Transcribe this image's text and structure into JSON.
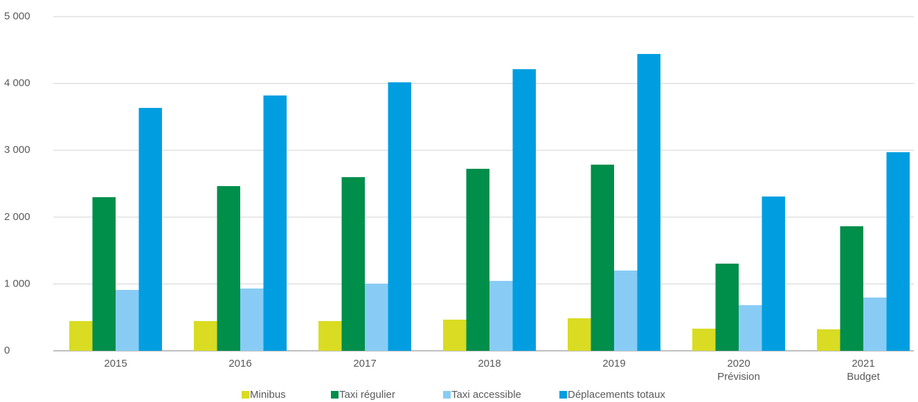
{
  "chart_data": {
    "type": "bar",
    "categories": [
      "2015",
      "2016",
      "2017",
      "2018",
      "2019",
      "2020\nPrévision",
      "2021\nBudget"
    ],
    "series": [
      {
        "name": "Minibus",
        "color": "#d9dc22",
        "values": [
          445,
          445,
          445,
          466,
          487,
          331,
          321
        ]
      },
      {
        "name": "Taxi régulier",
        "color": "#008e4b",
        "values": [
          2298,
          2464,
          2598,
          2723,
          2785,
          1304,
          1863
        ]
      },
      {
        "name": "Taxi accessible",
        "color": "#88ccf5",
        "values": [
          911,
          932,
          1004,
          1046,
          1201,
          683,
          797
        ]
      },
      {
        "name": "Déplacements totaux",
        "color": "#009ee0",
        "values": [
          3634,
          3820,
          4017,
          4213,
          4441,
          2308,
          2971
        ]
      }
    ],
    "ylim": [
      0,
      5000
    ],
    "yticks": [
      0,
      {
        "value": 1000,
        "label": "1 000"
      },
      {
        "value": 2000,
        "label": "2 000"
      },
      {
        "value": 3000,
        "label": "3 000"
      },
      {
        "value": 4000,
        "label": "4 000"
      },
      {
        "value": 5000,
        "label": "5 000"
      }
    ],
    "grid": true,
    "legend": "bottom"
  }
}
